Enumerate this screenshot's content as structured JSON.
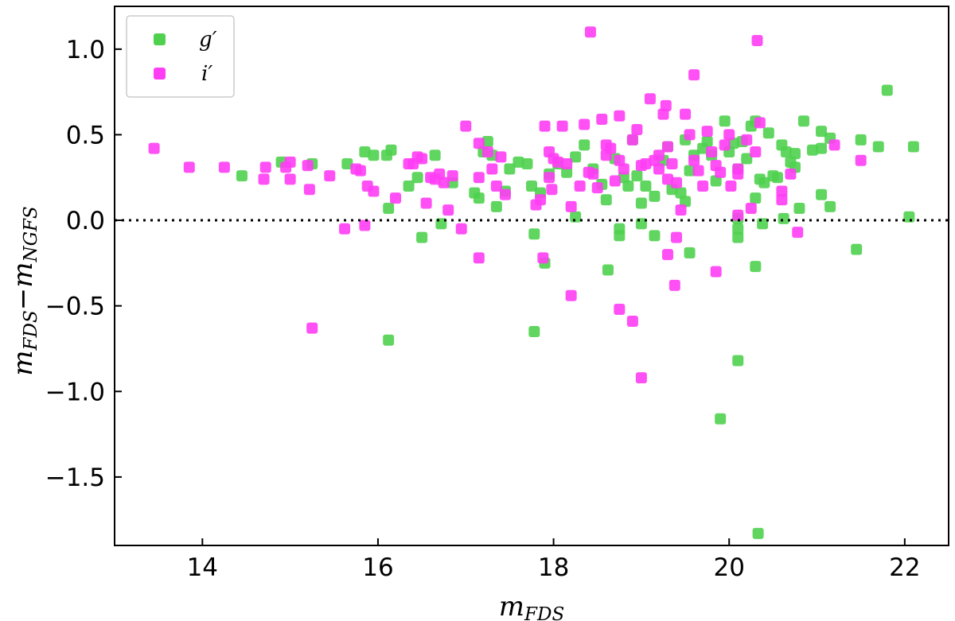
{
  "chart_data": {
    "type": "scatter",
    "title": "",
    "xlabel": "m",
    "xlabel_sub": "FDS",
    "ylabel": "m",
    "ylabel_sub1": "FDS",
    "ylabel_minus": "−",
    "ylabel_sub2": "NGFS",
    "xlim": [
      13.0,
      22.5
    ],
    "ylim": [
      -1.9,
      1.25
    ],
    "xticks": [
      14,
      16,
      18,
      20,
      22
    ],
    "xtick_labels": [
      "14",
      "16",
      "18",
      "20",
      "22"
    ],
    "yticks": [
      -1.5,
      -1.0,
      -0.5,
      0.0,
      0.5,
      1.0
    ],
    "ytick_labels": [
      "−1.5",
      "−1.0",
      "−0.5",
      "0.0",
      "0.5",
      "1.0"
    ],
    "reference_line": {
      "y": 0.0,
      "style": "dotted"
    },
    "legend": {
      "position": "top-left",
      "entries": [
        "g′",
        "i′"
      ]
    },
    "series": [
      {
        "name": "g′",
        "color": "#4fd14f",
        "points": [
          [
            14.45,
            0.26
          ],
          [
            14.9,
            0.34
          ],
          [
            15.25,
            0.33
          ],
          [
            15.65,
            0.33
          ],
          [
            15.85,
            0.4
          ],
          [
            15.95,
            0.38
          ],
          [
            16.1,
            0.38
          ],
          [
            16.15,
            0.41
          ],
          [
            16.12,
            0.07
          ],
          [
            16.12,
            -0.7
          ],
          [
            16.35,
            0.2
          ],
          [
            16.45,
            0.25
          ],
          [
            16.5,
            -0.1
          ],
          [
            16.65,
            0.38
          ],
          [
            16.72,
            -0.02
          ],
          [
            16.85,
            0.22
          ],
          [
            17.1,
            0.16
          ],
          [
            17.15,
            0.13
          ],
          [
            17.2,
            0.4
          ],
          [
            17.25,
            0.46
          ],
          [
            17.3,
            0.38
          ],
          [
            17.35,
            0.08
          ],
          [
            17.45,
            0.17
          ],
          [
            17.5,
            0.3
          ],
          [
            17.6,
            0.34
          ],
          [
            17.7,
            0.33
          ],
          [
            17.75,
            0.2
          ],
          [
            17.78,
            -0.08
          ],
          [
            17.78,
            -0.65
          ],
          [
            17.85,
            0.16
          ],
          [
            17.9,
            -0.25
          ],
          [
            17.95,
            0.27
          ],
          [
            18.05,
            0.33
          ],
          [
            18.15,
            0.28
          ],
          [
            18.25,
            0.37
          ],
          [
            18.25,
            0.02
          ],
          [
            18.35,
            0.44
          ],
          [
            18.45,
            0.3
          ],
          [
            18.55,
            0.21
          ],
          [
            18.6,
            0.12
          ],
          [
            18.62,
            -0.29
          ],
          [
            18.7,
            0.36
          ],
          [
            18.75,
            -0.05
          ],
          [
            18.75,
            -0.09
          ],
          [
            18.8,
            0.25
          ],
          [
            18.85,
            0.2
          ],
          [
            18.9,
            0.47
          ],
          [
            18.95,
            0.26
          ],
          [
            19.0,
            0.1
          ],
          [
            19.0,
            -0.02
          ],
          [
            19.05,
            0.2
          ],
          [
            19.15,
            0.14
          ],
          [
            19.15,
            -0.09
          ],
          [
            19.25,
            0.35
          ],
          [
            19.3,
            0.43
          ],
          [
            19.35,
            0.18
          ],
          [
            19.45,
            0.16
          ],
          [
            19.5,
            0.11
          ],
          [
            19.5,
            0.47
          ],
          [
            19.55,
            0.29
          ],
          [
            19.55,
            -0.19
          ],
          [
            19.6,
            0.38
          ],
          [
            19.7,
            0.42
          ],
          [
            19.75,
            0.46
          ],
          [
            19.8,
            0.38
          ],
          [
            19.85,
            0.23
          ],
          [
            19.9,
            -1.16
          ],
          [
            19.95,
            0.58
          ],
          [
            20.0,
            0.4
          ],
          [
            20.05,
            0.45
          ],
          [
            20.1,
            0.3
          ],
          [
            20.1,
            0.01
          ],
          [
            20.1,
            -0.05
          ],
          [
            20.1,
            -0.1
          ],
          [
            20.1,
            -0.82
          ],
          [
            20.15,
            0.46
          ],
          [
            20.2,
            0.36
          ],
          [
            20.25,
            0.55
          ],
          [
            20.3,
            0.58
          ],
          [
            20.3,
            -0.27
          ],
          [
            20.3,
            0.13
          ],
          [
            20.33,
            -1.83
          ],
          [
            20.35,
            0.24
          ],
          [
            20.38,
            -0.02
          ],
          [
            20.4,
            0.22
          ],
          [
            20.45,
            0.51
          ],
          [
            20.5,
            0.26
          ],
          [
            20.55,
            0.25
          ],
          [
            20.6,
            0.44
          ],
          [
            20.62,
            0.01
          ],
          [
            20.65,
            0.4
          ],
          [
            20.7,
            0.34
          ],
          [
            20.75,
            0.31
          ],
          [
            20.75,
            0.39
          ],
          [
            20.8,
            0.07
          ],
          [
            20.85,
            0.58
          ],
          [
            20.95,
            0.41
          ],
          [
            21.05,
            0.42
          ],
          [
            21.05,
            0.52
          ],
          [
            21.05,
            0.15
          ],
          [
            21.15,
            0.48
          ],
          [
            21.15,
            0.08
          ],
          [
            21.45,
            -0.17
          ],
          [
            21.5,
            0.47
          ],
          [
            21.7,
            0.43
          ],
          [
            21.8,
            0.76
          ],
          [
            22.05,
            0.02
          ],
          [
            22.1,
            0.43
          ]
        ]
      },
      {
        "name": "i′",
        "color": "#ff3df5",
        "points": [
          [
            13.45,
            0.42
          ],
          [
            13.85,
            0.31
          ],
          [
            14.25,
            0.31
          ],
          [
            14.7,
            0.24
          ],
          [
            14.72,
            0.31
          ],
          [
            14.95,
            0.31
          ],
          [
            15.0,
            0.34
          ],
          [
            15.0,
            0.24
          ],
          [
            15.2,
            0.32
          ],
          [
            15.22,
            0.18
          ],
          [
            15.25,
            -0.63
          ],
          [
            15.45,
            0.26
          ],
          [
            15.62,
            -0.05
          ],
          [
            15.75,
            0.3
          ],
          [
            15.8,
            0.29
          ],
          [
            15.85,
            -0.03
          ],
          [
            15.88,
            0.2
          ],
          [
            15.95,
            0.17
          ],
          [
            16.2,
            0.13
          ],
          [
            16.35,
            0.33
          ],
          [
            16.4,
            0.33
          ],
          [
            16.45,
            0.37
          ],
          [
            16.5,
            0.36
          ],
          [
            16.55,
            0.1
          ],
          [
            16.6,
            0.25
          ],
          [
            16.65,
            0.24
          ],
          [
            16.7,
            0.27
          ],
          [
            16.75,
            0.22
          ],
          [
            16.8,
            0.06
          ],
          [
            16.85,
            0.26
          ],
          [
            16.95,
            -0.05
          ],
          [
            17.0,
            0.55
          ],
          [
            17.15,
            0.45
          ],
          [
            17.15,
            0.25
          ],
          [
            17.15,
            -0.22
          ],
          [
            17.25,
            0.4
          ],
          [
            17.3,
            0.3
          ],
          [
            17.35,
            0.2
          ],
          [
            17.4,
            0.37
          ],
          [
            17.45,
            0.15
          ],
          [
            17.8,
            0.09
          ],
          [
            17.85,
            0.12
          ],
          [
            17.88,
            -0.22
          ],
          [
            17.9,
            0.55
          ],
          [
            17.95,
            0.25
          ],
          [
            17.95,
            0.4
          ],
          [
            17.98,
            0.18
          ],
          [
            18.0,
            0.36
          ],
          [
            18.05,
            0.34
          ],
          [
            18.1,
            0.55
          ],
          [
            18.15,
            0.33
          ],
          [
            18.2,
            0.08
          ],
          [
            18.2,
            -0.44
          ],
          [
            18.3,
            0.2
          ],
          [
            18.35,
            0.56
          ],
          [
            18.4,
            0.28
          ],
          [
            18.42,
            1.1
          ],
          [
            18.45,
            0.27
          ],
          [
            18.5,
            0.19
          ],
          [
            18.55,
            0.59
          ],
          [
            18.6,
            0.44
          ],
          [
            18.6,
            0.38
          ],
          [
            18.65,
            0.42
          ],
          [
            18.7,
            0.23
          ],
          [
            18.75,
            0.61
          ],
          [
            18.75,
            0.35
          ],
          [
            18.75,
            -0.52
          ],
          [
            18.8,
            0.3
          ],
          [
            18.9,
            0.47
          ],
          [
            18.9,
            -0.59
          ],
          [
            18.95,
            0.53
          ],
          [
            19.0,
            0.32
          ],
          [
            19.0,
            -0.92
          ],
          [
            19.05,
            0.33
          ],
          [
            19.1,
            0.71
          ],
          [
            19.15,
            0.35
          ],
          [
            19.2,
            0.3
          ],
          [
            19.2,
            0.38
          ],
          [
            19.25,
            0.62
          ],
          [
            19.28,
            0.67
          ],
          [
            19.3,
            0.43
          ],
          [
            19.3,
            0.24
          ],
          [
            19.3,
            -0.2
          ],
          [
            19.35,
            0.33
          ],
          [
            19.38,
            -0.38
          ],
          [
            19.4,
            0.22
          ],
          [
            19.4,
            -0.1
          ],
          [
            19.45,
            0.06
          ],
          [
            19.5,
            0.62
          ],
          [
            19.55,
            0.5
          ],
          [
            19.6,
            0.85
          ],
          [
            19.6,
            0.35
          ],
          [
            19.65,
            0.29
          ],
          [
            19.7,
            0.2
          ],
          [
            19.75,
            0.52
          ],
          [
            19.8,
            0.4
          ],
          [
            19.85,
            0.32
          ],
          [
            19.85,
            -0.3
          ],
          [
            19.9,
            0.28
          ],
          [
            19.95,
            0.44
          ],
          [
            20.0,
            0.5
          ],
          [
            20.02,
            0.2
          ],
          [
            20.1,
            0.3
          ],
          [
            20.1,
            0.27
          ],
          [
            20.1,
            0.03
          ],
          [
            20.2,
            0.47
          ],
          [
            20.25,
            0.07
          ],
          [
            20.3,
            0.4
          ],
          [
            20.32,
            1.05
          ],
          [
            20.35,
            0.57
          ],
          [
            20.6,
            0.17
          ],
          [
            20.6,
            0.12
          ],
          [
            20.7,
            0.27
          ],
          [
            20.78,
            -0.07
          ],
          [
            21.2,
            0.44
          ],
          [
            21.5,
            0.35
          ]
        ]
      }
    ]
  }
}
